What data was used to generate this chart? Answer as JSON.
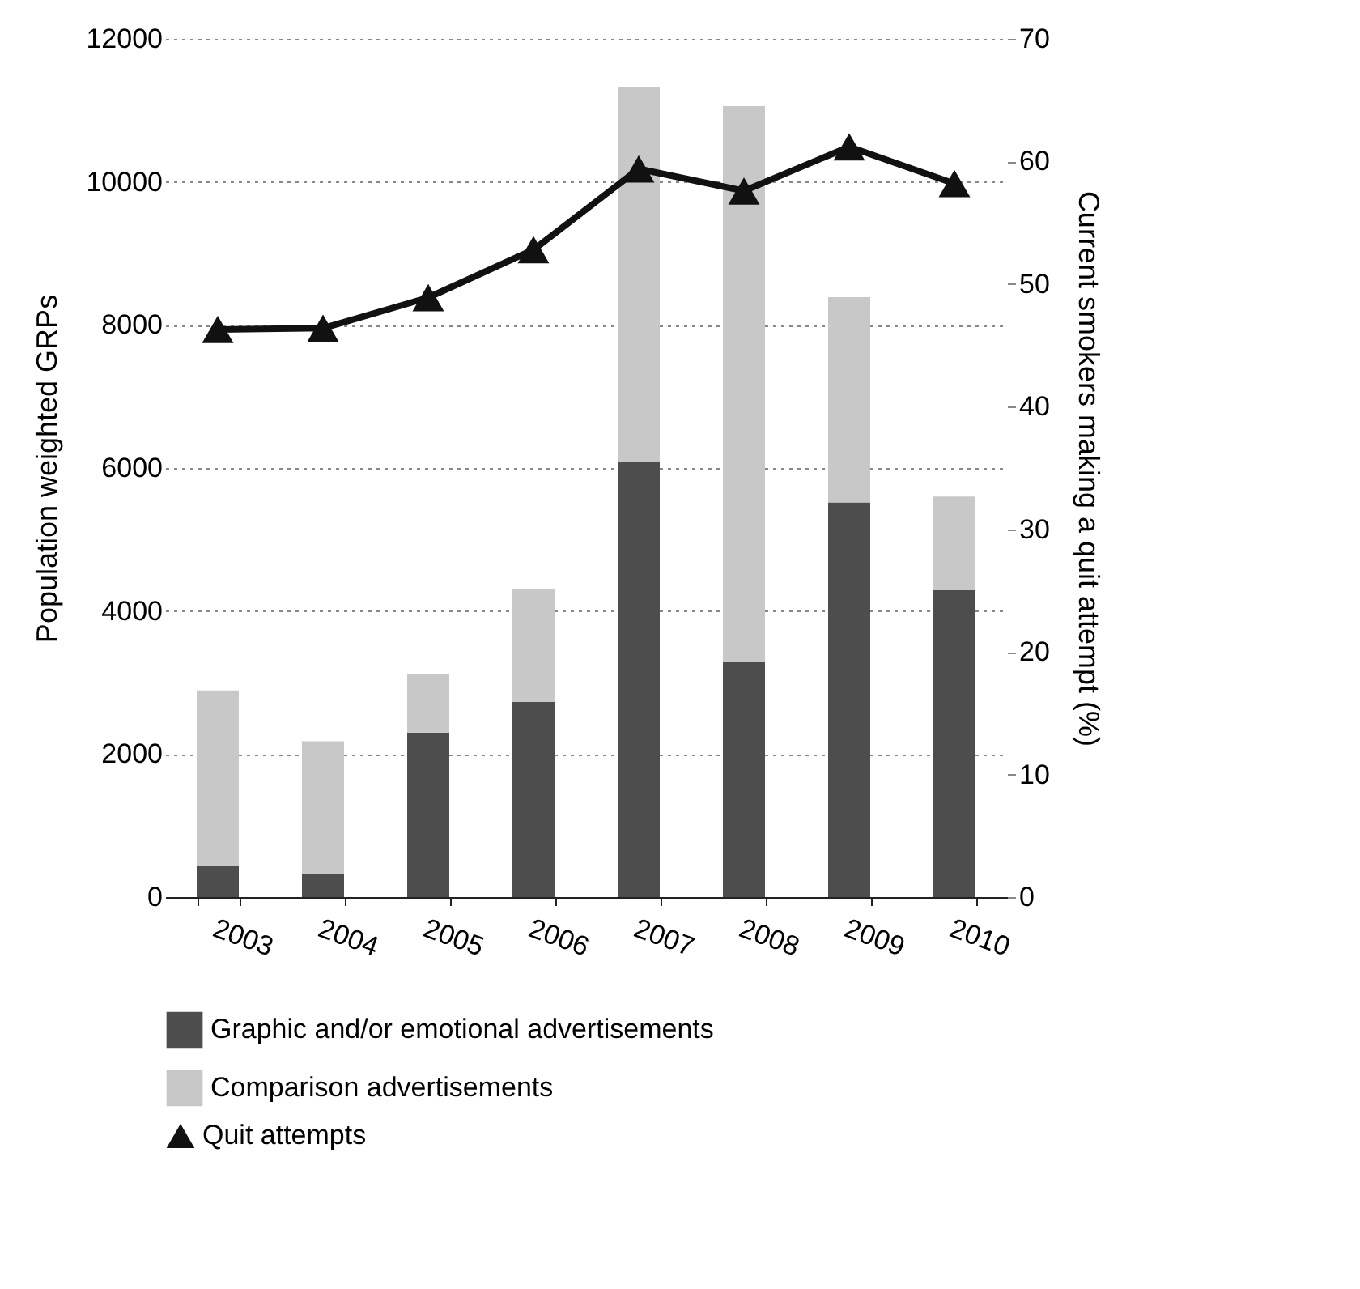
{
  "chart_data": {
    "type": "bar",
    "stacked": true,
    "categories": [
      "2003",
      "2004",
      "2005",
      "2006",
      "2007",
      "2008",
      "2009",
      "2010"
    ],
    "ylabel": "Population weighted GRPs",
    "y2label": "Current smokers making a quit attempt (%)",
    "ylim": [
      0,
      12000
    ],
    "yticks": [
      0,
      2000,
      4000,
      6000,
      8000,
      10000,
      12000
    ],
    "y2lim": [
      0,
      70
    ],
    "y2ticks": [
      0,
      10,
      20,
      30,
      40,
      50,
      60,
      70
    ],
    "grid": "y",
    "legend": "bottom",
    "marker": "triangle",
    "line_style": "solid",
    "series": [
      {
        "name": "Graphic and/or emotional advertisements",
        "color": "#4d4d4d",
        "values": [
          430,
          320,
          2300,
          2730,
          6080,
          3290,
          5520,
          4290
        ]
      },
      {
        "name": "Comparison advertisements",
        "color": "#c8c8c8",
        "values": [
          2460,
          1860,
          820,
          1580,
          5240,
          7770,
          2870,
          1310
        ]
      },
      {
        "name": "Quit attempts",
        "type": "line",
        "axis": "y2",
        "color": "#111111",
        "values": [
          46.3,
          46.4,
          48.9,
          52.8,
          59.4,
          57.6,
          61.2,
          58.2
        ]
      }
    ]
  }
}
